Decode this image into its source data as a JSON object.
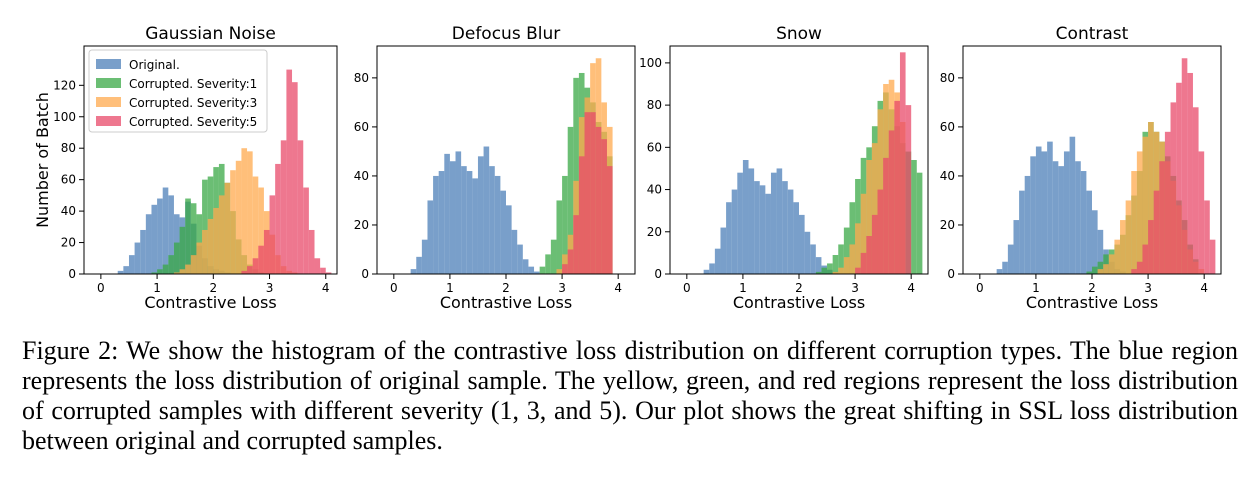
{
  "figure": {
    "caption": "Figure 2: We show the histogram of the contrastive loss distribution on different corruption types. The blue region represents the loss distribution of original sample. The yellow, green, and red regions represent the loss distribution of corrupted samples with different severity (1, 3, and 5). Our plot shows the great shifting in SSL loss distribution between original and corrupted samples."
  },
  "legend": {
    "entries": [
      "Original.",
      "Corrupted. Severity:1",
      "Corrupted. Severity:3",
      "Corrupted. Severity:5"
    ],
    "placement": "top-left (first panel only)"
  },
  "colors": {
    "original": "#4c7fb8",
    "severity_1": "#3aa845",
    "severity_3": "#ffa94d",
    "severity_5": "#e8496a",
    "opacity": 0.75
  },
  "chart_data": [
    {
      "type": "histogram",
      "title": "Gaussian Noise",
      "xlabel": "Contrastive Loss",
      "ylabel": "Number of Batch",
      "xlim": [
        -0.3,
        4.2
      ],
      "ylim": [
        0,
        145
      ],
      "xticks": [
        0,
        1,
        2,
        3,
        4
      ],
      "yticks": [
        0,
        20,
        40,
        60,
        80,
        100,
        120
      ],
      "bin_width": 0.1,
      "series": [
        {
          "name": "Original.",
          "start": 0.3,
          "values": [
            2,
            5,
            12,
            20,
            28,
            38,
            44,
            48,
            55,
            50,
            38,
            36,
            46,
            32,
            18,
            10,
            5,
            3,
            2,
            1
          ]
        },
        {
          "name": "Corrupted. Severity:1",
          "start": 0.9,
          "values": [
            1,
            3,
            6,
            12,
            20,
            30,
            48,
            45,
            38,
            60,
            62,
            68,
            70,
            58,
            40,
            22,
            12,
            6,
            3,
            1
          ]
        },
        {
          "name": "Corrupted. Severity:3",
          "start": 1.3,
          "values": [
            1,
            3,
            6,
            12,
            20,
            28,
            35,
            42,
            50,
            58,
            66,
            72,
            80,
            78,
            62,
            55,
            40,
            25,
            12,
            5,
            2,
            1
          ]
        },
        {
          "name": "Corrupted. Severity:5",
          "start": 2.5,
          "values": [
            2,
            5,
            10,
            18,
            28,
            50,
            70,
            85,
            130,
            122,
            85,
            55,
            28,
            10,
            4,
            1
          ]
        }
      ]
    },
    {
      "type": "histogram",
      "title": "Defocus Blur",
      "xlabel": "Contrastive Loss",
      "ylabel": "",
      "xlim": [
        -0.3,
        4.3
      ],
      "ylim": [
        0,
        93
      ],
      "xticks": [
        0,
        1,
        2,
        3,
        4
      ],
      "yticks": [
        0,
        20,
        40,
        60,
        80
      ],
      "bin_width": 0.1,
      "series": [
        {
          "name": "Original.",
          "start": 0.3,
          "values": [
            2,
            7,
            14,
            30,
            40,
            42,
            49,
            46,
            50,
            44,
            42,
            39,
            48,
            52,
            44,
            40,
            34,
            28,
            18,
            12,
            6,
            3,
            1
          ]
        },
        {
          "name": "Corrupted. Severity:1",
          "start": 2.6,
          "values": [
            3,
            8,
            14,
            30,
            40,
            60,
            80,
            82,
            76,
            70,
            62,
            58,
            48
          ]
        },
        {
          "name": "Corrupted. Severity:3",
          "start": 2.9,
          "values": [
            2,
            8,
            16,
            38,
            64,
            72,
            86,
            88,
            70,
            60
          ]
        },
        {
          "name": "Corrupted. Severity:5",
          "start": 3.0,
          "values": [
            4,
            10,
            24,
            48,
            66,
            66,
            60,
            55,
            44
          ]
        }
      ]
    },
    {
      "type": "histogram",
      "title": "Snow",
      "xlabel": "Contrastive Loss",
      "ylabel": "",
      "xlim": [
        -0.3,
        4.3
      ],
      "ylim": [
        0,
        108
      ],
      "xticks": [
        0,
        1,
        2,
        3,
        4
      ],
      "yticks": [
        0,
        20,
        40,
        60,
        80,
        100
      ],
      "bin_width": 0.1,
      "series": [
        {
          "name": "Original.",
          "start": 0.3,
          "values": [
            2,
            5,
            12,
            22,
            34,
            40,
            48,
            54,
            50,
            44,
            42,
            38,
            48,
            50,
            44,
            40,
            34,
            28,
            20,
            14,
            8,
            4,
            2,
            1
          ]
        },
        {
          "name": "Corrupted. Severity:1",
          "start": 2.3,
          "values": [
            1,
            3,
            5,
            9,
            14,
            22,
            34,
            45,
            55,
            60,
            70,
            82,
            86,
            78,
            70,
            62,
            58,
            54,
            48
          ]
        },
        {
          "name": "Corrupted. Severity:3",
          "start": 2.6,
          "values": [
            1,
            3,
            8,
            14,
            24,
            38,
            54,
            62,
            78,
            90,
            92,
            86,
            72
          ]
        },
        {
          "name": "Corrupted. Severity:5",
          "start": 3.0,
          "values": [
            3,
            10,
            18,
            28,
            40,
            55,
            68,
            82,
            105,
            80
          ]
        }
      ]
    },
    {
      "type": "histogram",
      "title": "Contrast",
      "xlabel": "Contrastive Loss",
      "ylabel": "",
      "xlim": [
        -0.3,
        4.3
      ],
      "ylim": [
        0,
        93
      ],
      "xticks": [
        0,
        1,
        2,
        3,
        4
      ],
      "yticks": [
        0,
        20,
        40,
        60,
        80
      ],
      "bin_width": 0.1,
      "series": [
        {
          "name": "Original.",
          "start": 0.3,
          "values": [
            2,
            5,
            12,
            22,
            34,
            40,
            48,
            52,
            50,
            54,
            46,
            44,
            50,
            56,
            46,
            42,
            34,
            26,
            18,
            10,
            5,
            2,
            1
          ]
        },
        {
          "name": "Corrupted. Severity:1",
          "start": 1.9,
          "values": [
            1,
            3,
            5,
            8,
            10,
            12,
            16,
            24,
            32,
            42,
            58,
            62,
            58,
            54,
            48,
            40,
            30,
            22,
            12,
            6
          ]
        },
        {
          "name": "Corrupted. Severity:3",
          "start": 2.1,
          "values": [
            2,
            4,
            8,
            14,
            22,
            30,
            42,
            50,
            56,
            62,
            58,
            54,
            46,
            38,
            28,
            18,
            10,
            5,
            2
          ]
        },
        {
          "name": "Corrupted. Severity:5",
          "start": 2.7,
          "values": [
            2,
            5,
            12,
            22,
            34,
            46,
            58,
            70,
            78,
            88,
            82,
            68,
            50,
            30,
            14
          ]
        }
      ]
    }
  ]
}
